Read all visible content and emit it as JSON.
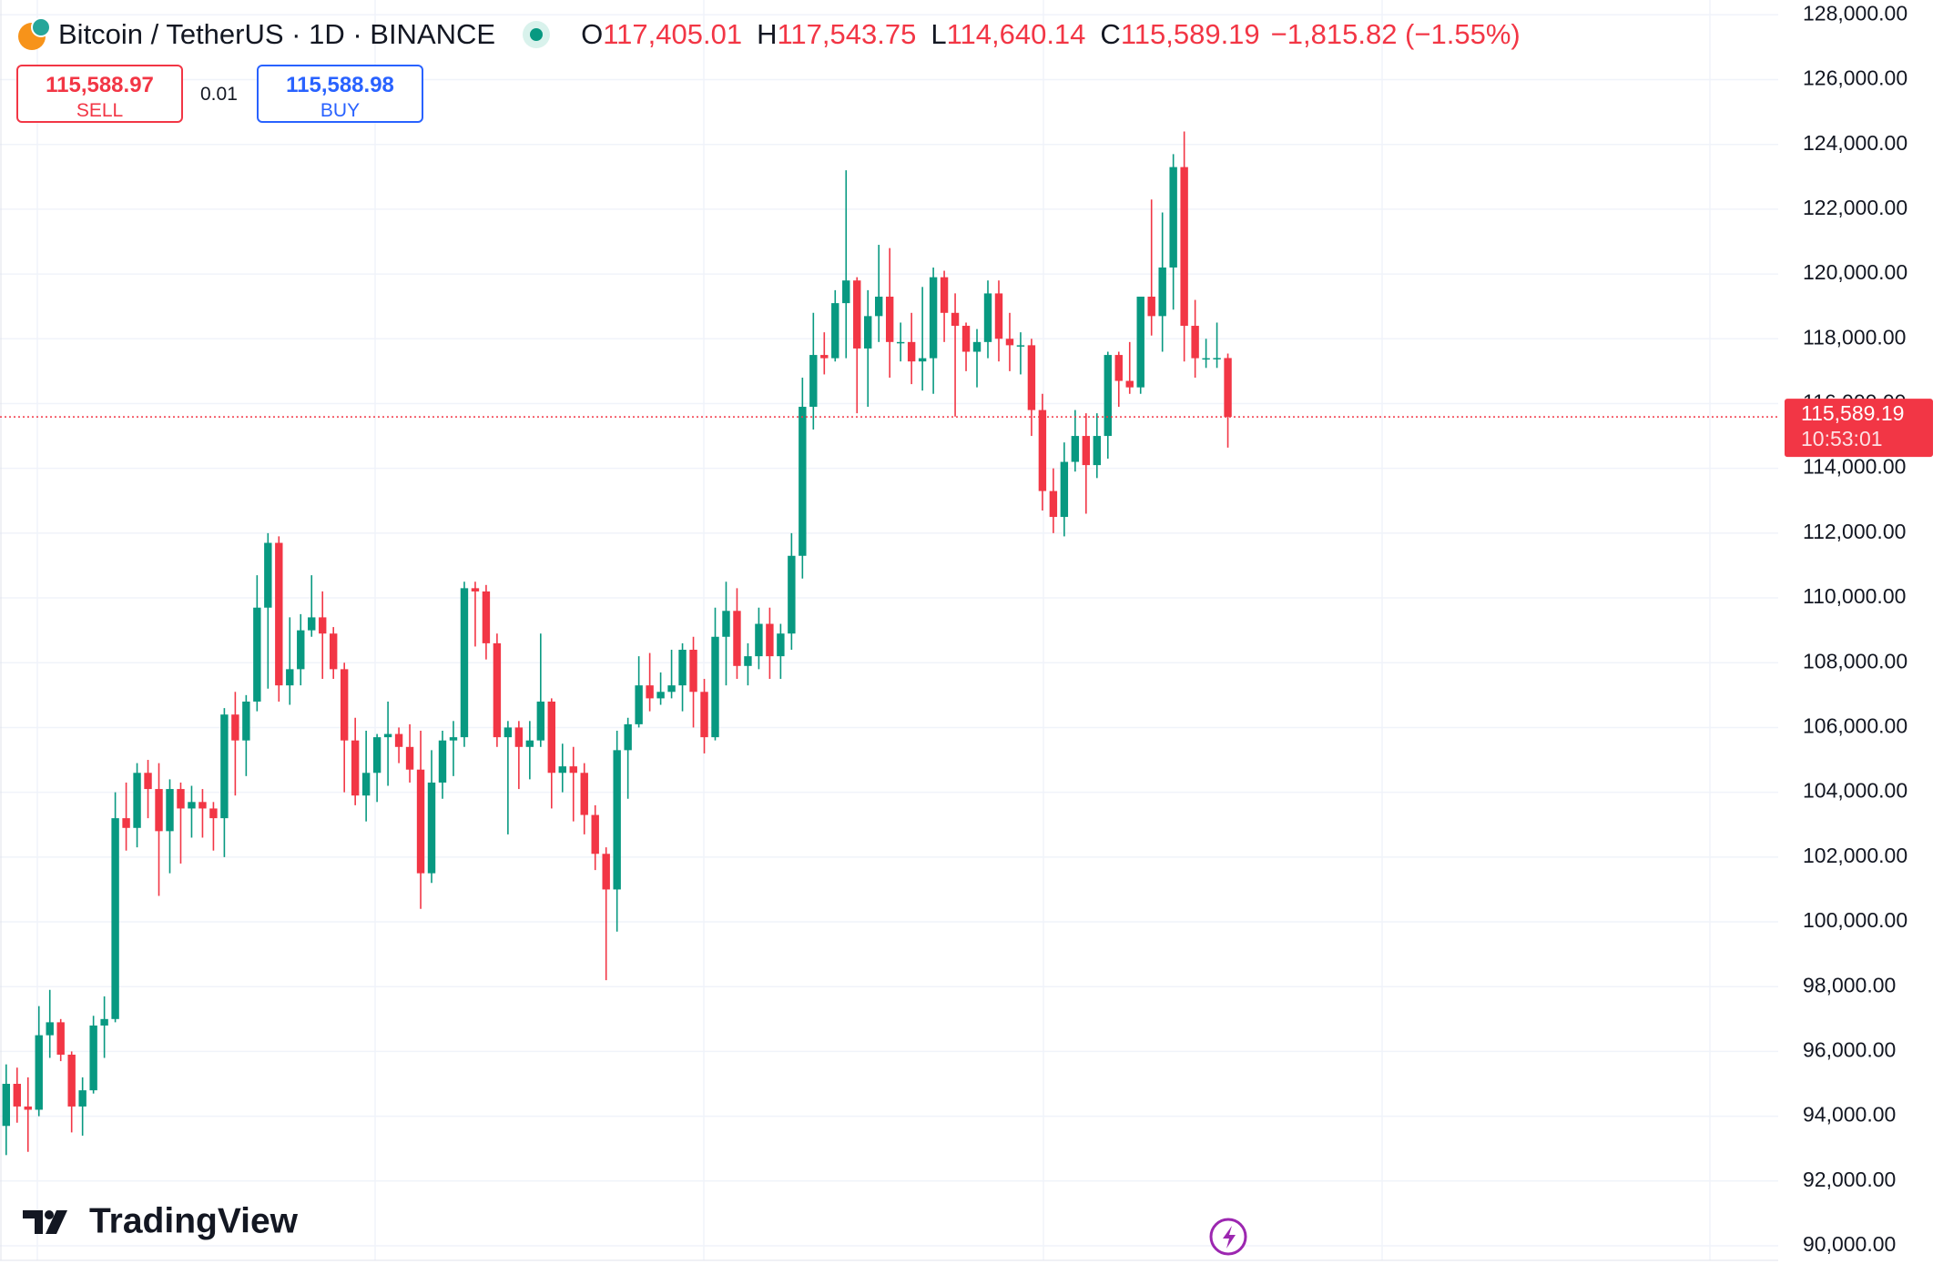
{
  "header": {
    "symbol": "Bitcoin / TetherUS · 1D · BINANCE",
    "ohlc": [
      {
        "label": "O",
        "value": "117,405.01"
      },
      {
        "label": "H",
        "value": "117,543.75"
      },
      {
        "label": "L",
        "value": "114,640.14"
      },
      {
        "label": "C",
        "value": "115,589.19"
      }
    ],
    "change": "−1,815.82 (−1.55%)"
  },
  "order": {
    "sell_price": "115,588.97",
    "sell_label": "SELL",
    "quantity": "0.01",
    "buy_price": "115,588.98",
    "buy_label": "BUY"
  },
  "branding": "TradingView",
  "chart_data": {
    "type": "candlestick",
    "up_color": "#089981",
    "down_color": "#f23645",
    "grid": true,
    "price_label": "115,589.19",
    "countdown": "10:53:01",
    "ylim": [
      90000,
      128000
    ],
    "yticks": [
      {
        "value": 90000,
        "label": "90,000.00"
      },
      {
        "value": 92000,
        "label": "92,000.00"
      },
      {
        "value": 94000,
        "label": "94,000.00"
      },
      {
        "value": 96000,
        "label": "96,000.00"
      },
      {
        "value": 98000,
        "label": "98,000.00"
      },
      {
        "value": 100000,
        "label": "100,000.00"
      },
      {
        "value": 102000,
        "label": "102,000.00"
      },
      {
        "value": 104000,
        "label": "104,000.00"
      },
      {
        "value": 106000,
        "label": "106,000.00"
      },
      {
        "value": 108000,
        "label": "108,000.00"
      },
      {
        "value": 110000,
        "label": "110,000.00"
      },
      {
        "value": 112000,
        "label": "112,000.00"
      },
      {
        "value": 114000,
        "label": "114,000.00"
      },
      {
        "value": 116000,
        "label": "116,000.00"
      },
      {
        "value": 118000,
        "label": "118,000.00"
      },
      {
        "value": 120000,
        "label": "120,000.00"
      },
      {
        "value": 122000,
        "label": "122,000.00"
      },
      {
        "value": 124000,
        "label": "124,000.00"
      },
      {
        "value": 126000,
        "label": "126,000.00"
      },
      {
        "value": 128000,
        "label": "128,000.00"
      }
    ],
    "open": [
      93700,
      95000,
      94300,
      94200,
      96500,
      96900,
      95900,
      94300,
      94800,
      96800,
      97000,
      103200,
      102900,
      104600,
      104100,
      102800,
      104100,
      103500,
      103700,
      103500,
      103200,
      106400,
      105600,
      106800,
      109700,
      111700,
      107300,
      107800,
      109000,
      109400,
      108900,
      107800,
      105600,
      103900,
      104600,
      105700,
      105800,
      105400,
      104700,
      101500,
      104300,
      105600,
      105700,
      110300,
      110200,
      108600,
      105700,
      106000,
      105400,
      105600,
      106800,
      104600,
      104800,
      104600,
      103300,
      102100,
      101000,
      105300,
      106100,
      107300,
      106900,
      107100,
      107300,
      108400,
      107100,
      105700,
      108800,
      109600,
      107900,
      108200,
      109200,
      108200,
      108900,
      111300,
      115900,
      117500,
      117400,
      119100,
      119800,
      117700,
      118700,
      119300,
      117900,
      117900,
      117300,
      117400,
      119900,
      118800,
      118400,
      117600,
      117900,
      119400,
      118000,
      117800,
      117800,
      115800,
      113300,
      112500,
      114200,
      115000,
      114100,
      115000,
      117500,
      116700,
      116500,
      119300,
      118700,
      120200,
      123300,
      118400,
      117400,
      117400,
      117405.01
    ],
    "high": [
      95600,
      95500,
      95200,
      97400,
      97900,
      97000,
      96000,
      95200,
      97100,
      97700,
      104000,
      104300,
      104900,
      105000,
      104900,
      104400,
      104300,
      104200,
      104100,
      103700,
      106600,
      107100,
      107000,
      110700,
      112000,
      111900,
      109400,
      109500,
      110700,
      110200,
      109100,
      108000,
      106300,
      105900,
      105800,
      106800,
      106000,
      106100,
      105900,
      105300,
      105900,
      106200,
      110500,
      110500,
      110400,
      108900,
      106200,
      106200,
      106200,
      108900,
      106900,
      105500,
      105400,
      104900,
      103600,
      102300,
      105900,
      106300,
      108200,
      108300,
      107700,
      108400,
      108600,
      108800,
      107500,
      109700,
      110500,
      110300,
      108600,
      109700,
      109700,
      109200,
      112000,
      116800,
      118800,
      118200,
      119500,
      123200,
      119900,
      119500,
      120900,
      120800,
      118500,
      118800,
      119600,
      120200,
      120100,
      119400,
      118500,
      118300,
      119800,
      119800,
      118800,
      118200,
      118000,
      116300,
      114000,
      114800,
      115800,
      115700,
      115700,
      117600,
      117600,
      117900,
      119300,
      122300,
      121900,
      123700,
      124400,
      119200,
      118000,
      118500,
      117543.75
    ],
    "low": [
      92800,
      93800,
      92900,
      94000,
      95800,
      95700,
      93500,
      93400,
      94700,
      95800,
      96900,
      102200,
      102300,
      103200,
      100800,
      101500,
      101800,
      102600,
      102600,
      102200,
      102000,
      103900,
      104500,
      106500,
      107200,
      106800,
      106700,
      107300,
      108800,
      107500,
      107500,
      104000,
      103600,
      103100,
      103700,
      104200,
      104900,
      104300,
      100400,
      101200,
      103800,
      104500,
      105400,
      108500,
      108100,
      105400,
      102700,
      104100,
      104400,
      105400,
      103500,
      104000,
      103100,
      102700,
      101600,
      98200,
      99700,
      103800,
      106000,
      106500,
      106700,
      106900,
      106500,
      106000,
      105200,
      105600,
      107300,
      107500,
      107300,
      107800,
      107500,
      107500,
      108400,
      110600,
      115200,
      116900,
      117300,
      117400,
      115700,
      115900,
      117900,
      116800,
      117300,
      116600,
      116400,
      116300,
      117900,
      115600,
      117000,
      116500,
      117400,
      117300,
      117000,
      116900,
      115000,
      112700,
      112000,
      111900,
      113900,
      112600,
      113700,
      114300,
      115900,
      116300,
      116300,
      118100,
      117600,
      118900,
      117300,
      116800,
      117100,
      117100,
      114640.14
    ],
    "close": [
      95000,
      94300,
      94200,
      96500,
      96900,
      95900,
      94300,
      94800,
      96800,
      97000,
      103200,
      102900,
      104600,
      104100,
      102800,
      104100,
      103500,
      103700,
      103500,
      103200,
      106400,
      105600,
      106800,
      109700,
      111700,
      107300,
      107800,
      109000,
      109400,
      108900,
      107800,
      105600,
      103900,
      104600,
      105700,
      105800,
      105400,
      104700,
      101500,
      104300,
      105600,
      105700,
      110300,
      110200,
      108600,
      105700,
      106000,
      105400,
      105600,
      106800,
      104600,
      104800,
      104600,
      103300,
      102100,
      101000,
      105300,
      106100,
      107300,
      106900,
      107100,
      107300,
      108400,
      107100,
      105700,
      108800,
      109600,
      107900,
      108200,
      109200,
      108200,
      108900,
      111300,
      115900,
      117500,
      117400,
      119100,
      119800,
      117700,
      118700,
      119300,
      117900,
      117900,
      117300,
      117400,
      119900,
      118800,
      118400,
      117600,
      117900,
      119400,
      118000,
      117800,
      117800,
      115800,
      113300,
      112500,
      114200,
      115000,
      114100,
      115000,
      117500,
      116700,
      116500,
      119300,
      118700,
      120200,
      123300,
      118400,
      117400,
      117400,
      117405.01,
      115589.19
    ]
  }
}
